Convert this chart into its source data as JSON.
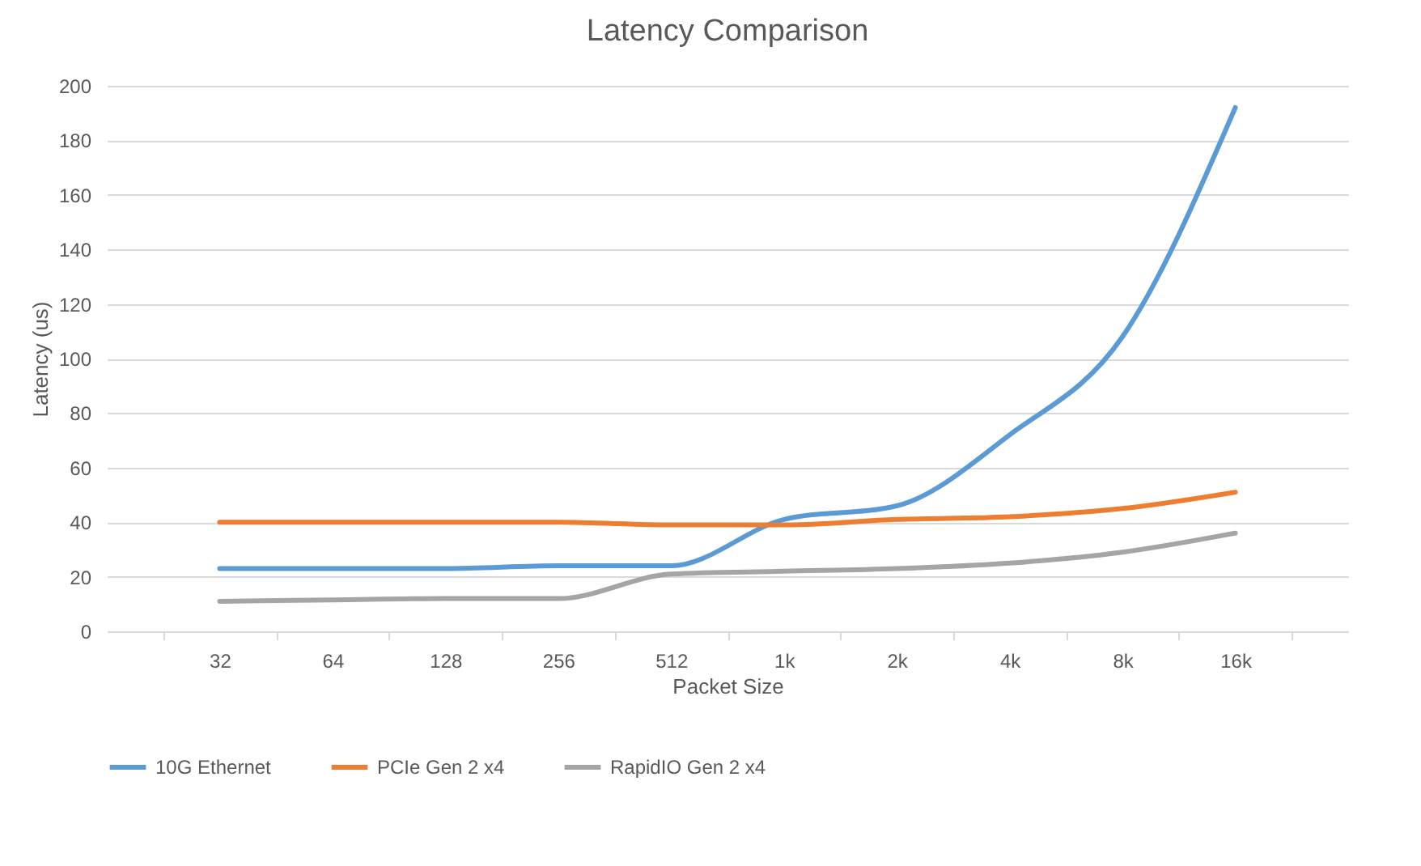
{
  "chart_data": {
    "type": "line",
    "title": "Latency Comparison",
    "xlabel": "Packet Size",
    "ylabel": "Latency (us)",
    "categories": [
      "32",
      "64",
      "128",
      "256",
      "512",
      "1k",
      "2k",
      "4k",
      "8k",
      "16k"
    ],
    "series": [
      {
        "name": "10G Ethernet",
        "color": "#5b9bd5",
        "values": [
          23,
          23,
          23,
          24,
          24,
          41,
          46,
          72,
          108,
          192
        ]
      },
      {
        "name": "PCIe Gen 2 x4",
        "color": "#ed7d31",
        "values": [
          40,
          40,
          40,
          40,
          39,
          39,
          41,
          42,
          45,
          51
        ]
      },
      {
        "name": "RapidIO Gen 2 x4",
        "color": "#a5a5a5",
        "values": [
          11,
          11.5,
          12,
          12,
          21,
          22,
          23,
          25,
          29,
          36
        ]
      }
    ],
    "ylim": [
      0,
      200
    ],
    "yticks": [
      0,
      20,
      40,
      60,
      80,
      100,
      120,
      140,
      160,
      180,
      200
    ],
    "grid": "y",
    "legend": "bottom",
    "marker": "none",
    "line_style": "solid"
  }
}
